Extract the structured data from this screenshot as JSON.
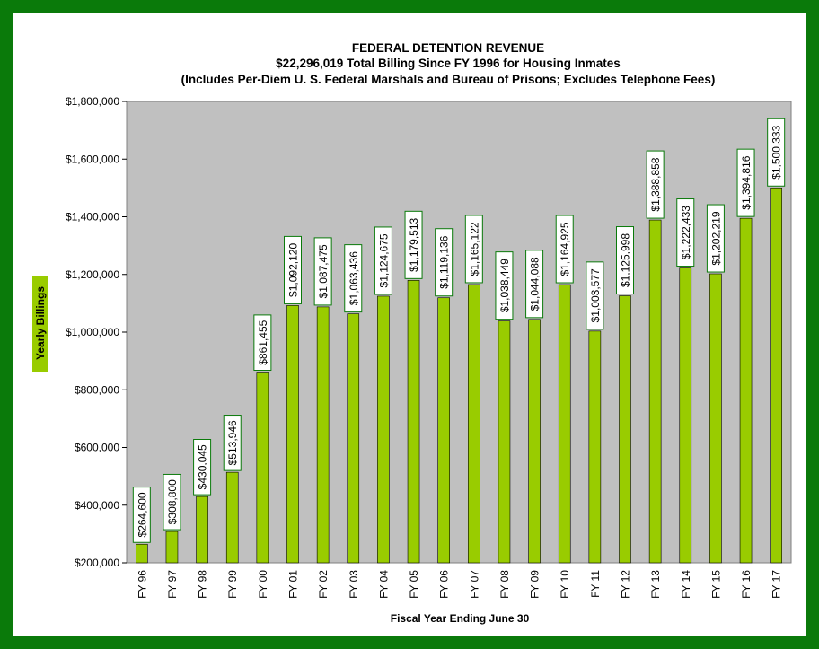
{
  "chart_data": {
    "type": "bar",
    "title": "FEDERAL DETENTION REVENUE",
    "subtitle": "$22,296,019 Total Billing Since FY 1996 for Housing Inmates",
    "subtitle2": "(Includes Per-Diem U. S. Federal Marshals and Bureau of Prisons; Excludes Telephone Fees)",
    "xlabel": "Fiscal Year Ending June 30",
    "ylabel": "Yearly Billings",
    "ylim": [
      200000,
      1800000
    ],
    "y_ticks": [
      "$200,000",
      "$400,000",
      "$600,000",
      "$800,000",
      "$1,000,000",
      "$1,200,000",
      "$1,400,000",
      "$1,600,000",
      "$1,800,000"
    ],
    "categories": [
      "FY 96",
      "FY 97",
      "FY 98",
      "FY 99",
      "FY 00",
      "FY 01",
      "FY 02",
      "FY 03",
      "FY 04",
      "FY 05",
      "FY 06",
      "FY 07",
      "FY 08",
      "FY 09",
      "FY 10",
      "FY 11",
      "FY 12",
      "FY 13",
      "FY 14",
      "FY 15",
      "FY 16",
      "FY 17"
    ],
    "values": [
      264600,
      308800,
      430045,
      513946,
      861455,
      1092120,
      1087475,
      1063436,
      1124675,
      1179513,
      1119136,
      1165122,
      1038449,
      1044088,
      1164925,
      1003577,
      1125998,
      1388858,
      1222433,
      1202219,
      1394816,
      1500333
    ],
    "data_labels": [
      "$264,600",
      "$308,800",
      "$430,045",
      "$513,946",
      "$861,455",
      "$1,092,120",
      "$1,087,475",
      "$1,063,436",
      "$1,124,675",
      "$1,179,513",
      "$1,119,136",
      "$1,165,122",
      "$1,038,449",
      "$1,044,088",
      "$1,164,925",
      "$1,003,577",
      "$1,125,998",
      "$1,388,858",
      "$1,222,433",
      "$1,202,219",
      "$1,394,816",
      "$1,500,333"
    ],
    "grid": false,
    "colors": {
      "frame": "#0a7a0a",
      "plot_bg": "#c0c0c0",
      "bar": "#99cc00",
      "bar_border": "#000000",
      "label_border": "#0a7a0a",
      "ylabel_bg": "#99cc00"
    }
  }
}
